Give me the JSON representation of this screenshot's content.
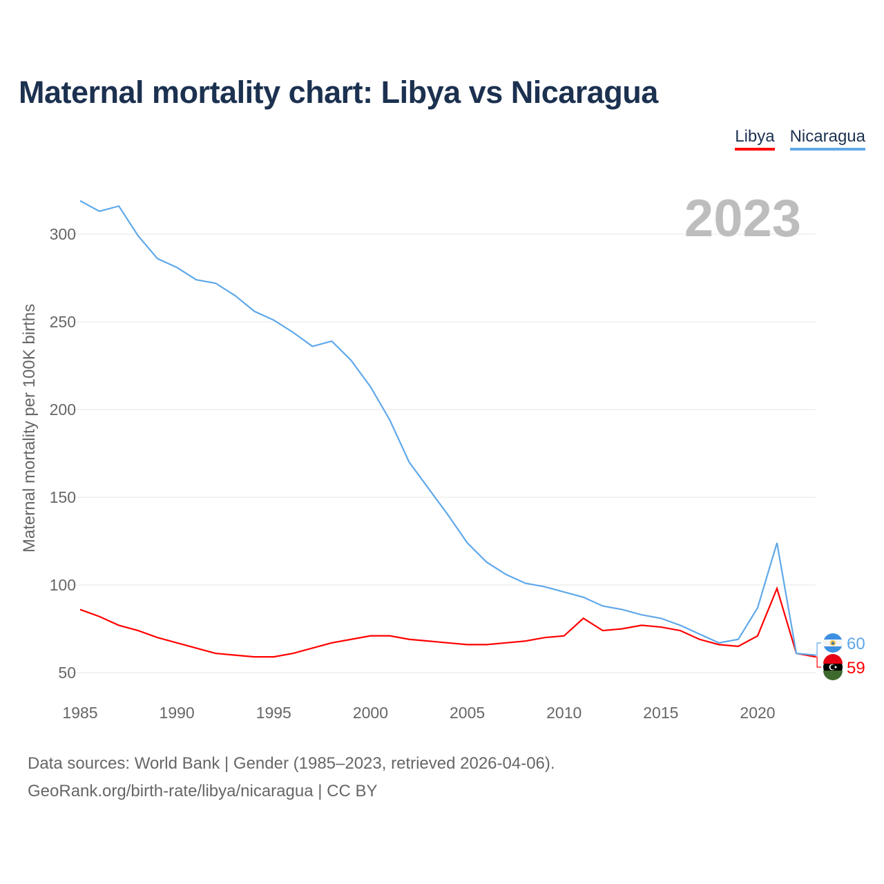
{
  "title": "Maternal mortality chart: Libya vs Nicaragua",
  "footer": {
    "line1": "Data sources: World Bank | Gender (1985–2023, retrieved 2026-04-06).",
    "line2": "GeoRank.org/birth-rate/libya/nicaragua | CC BY"
  },
  "chart_data": {
    "type": "line",
    "title": "Maternal mortality chart: Libya vs Nicaragua",
    "ylabel": "Maternal mortality per 100K births",
    "xlabel": "",
    "year_label": "2023",
    "xlim": [
      1985,
      2023
    ],
    "ylim": [
      50,
      320
    ],
    "xticks": [
      "1985",
      "1990",
      "1995",
      "2000",
      "2005",
      "2010",
      "2015",
      "2020"
    ],
    "yticks": [
      "50",
      "100",
      "150",
      "200",
      "250",
      "300"
    ],
    "x": [
      1985,
      1986,
      1987,
      1988,
      1989,
      1990,
      1991,
      1992,
      1993,
      1994,
      1995,
      1996,
      1997,
      1998,
      1999,
      2000,
      2001,
      2002,
      2003,
      2004,
      2005,
      2006,
      2007,
      2008,
      2009,
      2010,
      2011,
      2012,
      2013,
      2014,
      2015,
      2016,
      2017,
      2018,
      2019,
      2020,
      2021,
      2022,
      2023
    ],
    "legend_position": "top-right",
    "series": [
      {
        "name": "Libya",
        "color": "#ff0000",
        "end_label": "59",
        "values": [
          86,
          82,
          77,
          74,
          70,
          67,
          64,
          61,
          60,
          59,
          59,
          61,
          64,
          67,
          69,
          71,
          71,
          69,
          68,
          67,
          66,
          66,
          67,
          68,
          70,
          71,
          81,
          74,
          75,
          77,
          76,
          74,
          69,
          66,
          65,
          71,
          98,
          61,
          59
        ]
      },
      {
        "name": "Nicaragua",
        "color": "#5fa8ea",
        "end_label": "60",
        "values": [
          319,
          313,
          316,
          299,
          286,
          281,
          274,
          272,
          265,
          256,
          251,
          244,
          236,
          239,
          228,
          213,
          194,
          170,
          155,
          140,
          124,
          113,
          106,
          101,
          99,
          96,
          93,
          88,
          86,
          83,
          81,
          77,
          72,
          67,
          69,
          87,
          124,
          61,
          60
        ]
      }
    ]
  }
}
